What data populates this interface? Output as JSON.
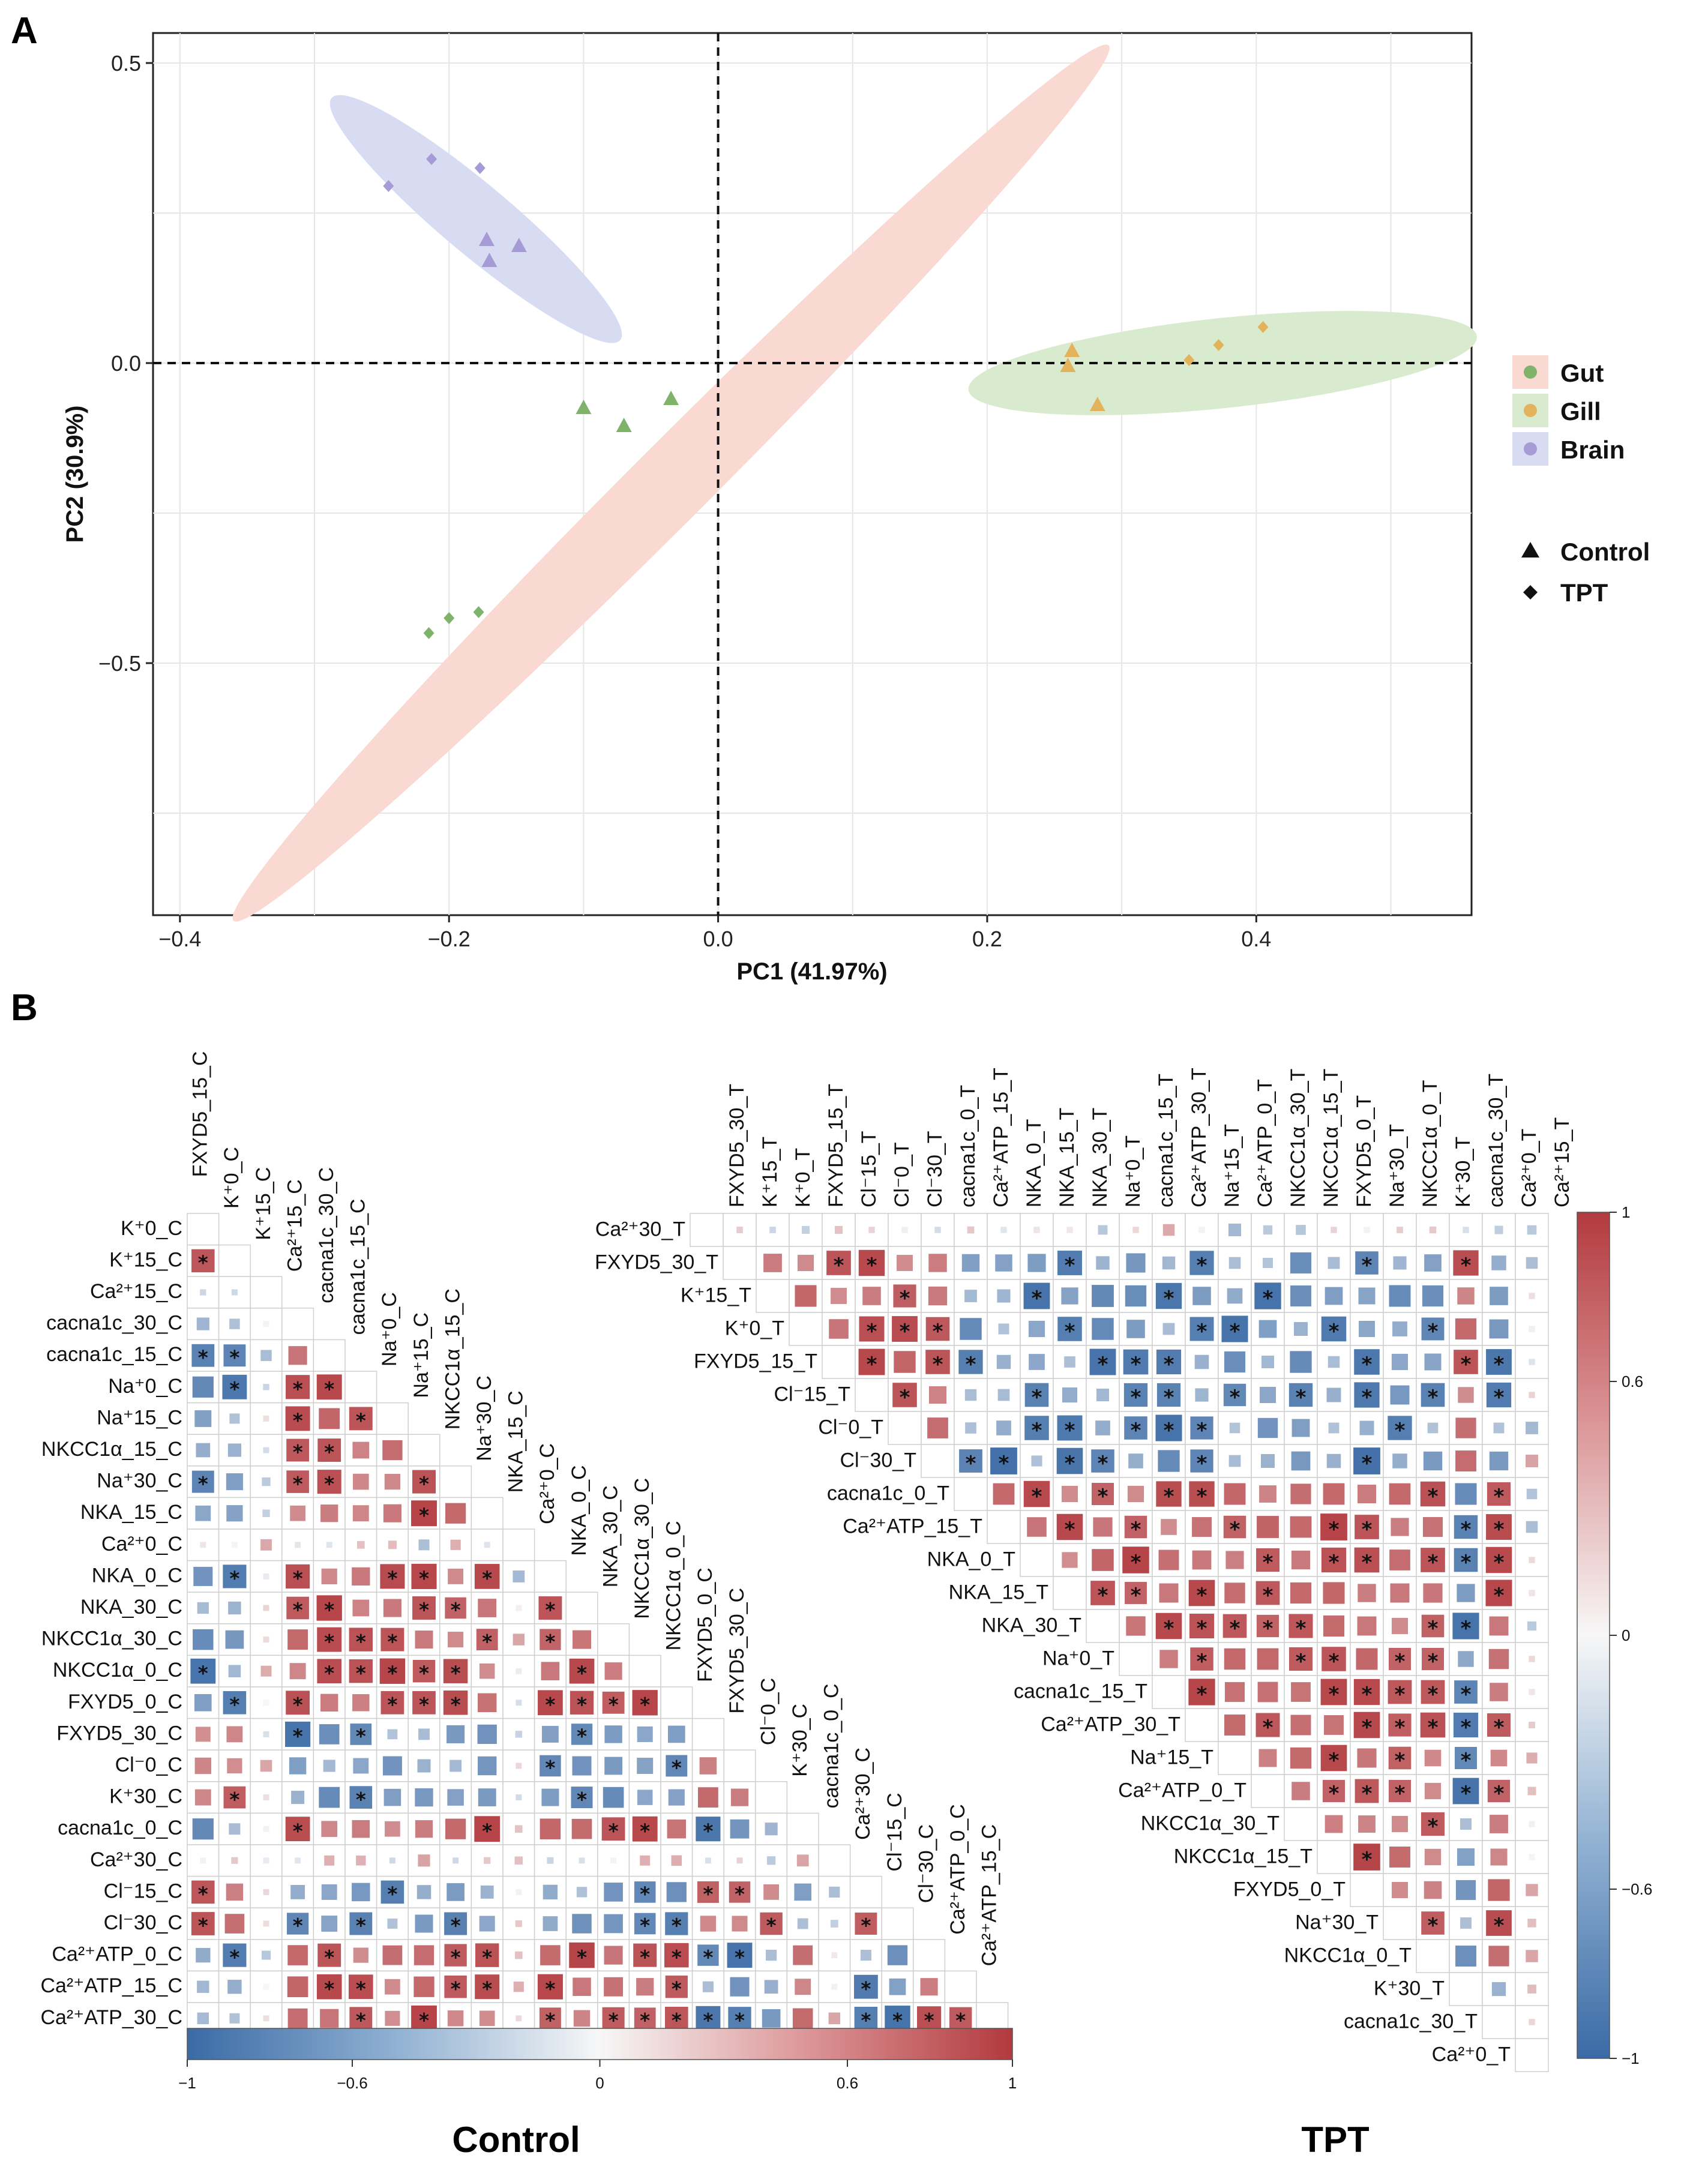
{
  "chart_data": [
    {
      "panel": "A",
      "type": "scatter",
      "xlabel": "PC1 (41.97%)",
      "ylabel": "PC2 (30.9%)",
      "xlim": [
        -0.42,
        0.56
      ],
      "ylim": [
        -0.92,
        0.55
      ],
      "xticks": [
        -0.4,
        -0.2,
        0.0,
        0.2,
        0.4
      ],
      "yticks": [
        -0.5,
        0.0,
        0.5
      ],
      "xtick_labels": [
        "−0.4",
        "−0.2",
        "0.0",
        "0.2",
        "0.4"
      ],
      "ytick_labels": [
        "−0.5",
        "0.0",
        "0.5"
      ],
      "tissues": [
        {
          "name": "Gut",
          "color": "#7fb26a",
          "fill": "#f9d9d2"
        },
        {
          "name": "Gill",
          "color": "#e3b25c",
          "fill": "#d9ebcf"
        },
        {
          "name": "Brain",
          "color": "#a69bd6",
          "fill": "#d7dcf3"
        }
      ],
      "treatments": [
        {
          "name": "Control",
          "shape": "triangle"
        },
        {
          "name": "TPT",
          "shape": "diamond"
        }
      ],
      "ellipses": [
        {
          "tissue": "Gut",
          "cx": -0.035,
          "cy": -0.2,
          "rx": 0.46,
          "ry": 0.065,
          "angle_deg": 45
        },
        {
          "tissue": "Gill",
          "cx": 0.375,
          "cy": 0.0,
          "rx": 0.19,
          "ry": 0.075,
          "angle_deg": 6
        },
        {
          "tissue": "Brain",
          "cx": -0.18,
          "cy": 0.24,
          "rx": 0.14,
          "ry": 0.058,
          "angle_deg": -40
        }
      ],
      "points": [
        {
          "tissue": "Gut",
          "treatment": "Control",
          "x": -0.1,
          "y": -0.075
        },
        {
          "tissue": "Gut",
          "treatment": "Control",
          "x": -0.07,
          "y": -0.105
        },
        {
          "tissue": "Gut",
          "treatment": "Control",
          "x": -0.035,
          "y": -0.06
        },
        {
          "tissue": "Gut",
          "treatment": "TPT",
          "x": -0.215,
          "y": -0.45
        },
        {
          "tissue": "Gut",
          "treatment": "TPT",
          "x": -0.2,
          "y": -0.425
        },
        {
          "tissue": "Gut",
          "treatment": "TPT",
          "x": -0.178,
          "y": -0.415
        },
        {
          "tissue": "Gill",
          "treatment": "Control",
          "x": 0.263,
          "y": 0.02
        },
        {
          "tissue": "Gill",
          "treatment": "Control",
          "x": 0.26,
          "y": -0.005
        },
        {
          "tissue": "Gill",
          "treatment": "Control",
          "x": 0.282,
          "y": -0.07
        },
        {
          "tissue": "Gill",
          "treatment": "TPT",
          "x": 0.35,
          "y": 0.005
        },
        {
          "tissue": "Gill",
          "treatment": "TPT",
          "x": 0.372,
          "y": 0.03
        },
        {
          "tissue": "Gill",
          "treatment": "TPT",
          "x": 0.405,
          "y": 0.06
        },
        {
          "tissue": "Brain",
          "treatment": "Control",
          "x": -0.172,
          "y": 0.205
        },
        {
          "tissue": "Brain",
          "treatment": "Control",
          "x": -0.17,
          "y": 0.17
        },
        {
          "tissue": "Brain",
          "treatment": "Control",
          "x": -0.148,
          "y": 0.195
        },
        {
          "tissue": "Brain",
          "treatment": "TPT",
          "x": -0.245,
          "y": 0.295
        },
        {
          "tissue": "Brain",
          "treatment": "TPT",
          "x": -0.213,
          "y": 0.34
        },
        {
          "tissue": "Brain",
          "treatment": "TPT",
          "x": -0.177,
          "y": 0.325
        }
      ]
    },
    {
      "panel": "B",
      "type": "heatmap",
      "title": "Control",
      "variables": [
        "K⁺0_C",
        "K⁺15_C",
        "Ca²⁺15_C",
        "cacna1c_30_C",
        "cacna1c_15_C",
        "Na⁺0_C",
        "Na⁺15_C",
        "NKCC1α_15_C",
        "Na⁺30_C",
        "NKA_15_C",
        "Ca²⁺0_C",
        "NKA_0_C",
        "NKA_30_C",
        "NKCC1α_30_C",
        "NKCC1α_0_C",
        "FXYD5_0_C",
        "FXYD5_30_C",
        "Cl⁻0_C",
        "K⁺30_C",
        "cacna1c_0_C",
        "Ca²⁺30_C",
        "Cl⁻15_C",
        "Cl⁻30_C",
        "Ca²⁺ATP_0_C",
        "Ca²⁺ATP_15_C",
        "Ca²⁺ATP_30_C"
      ],
      "diag_labels": [
        "FXYD5_15_C",
        "K⁺0_C",
        "K⁺15_C",
        "Ca²⁺15_C",
        "cacna1c_30_C",
        "cacna1c_15_C",
        "Na⁺0_C",
        "Na⁺15_C",
        "NKCC1α_15_C",
        "Na⁺30_C",
        "NKA_15_C",
        "Ca²⁺0_C",
        "NKA_0_C",
        "NKA_30_C",
        "NKCC1α_30_C",
        "NKCC1α_0_C",
        "FXYD5_0_C",
        "FXYD5_30_C",
        "Cl⁻0_C",
        "K⁺30_C",
        "cacna1c_0_C",
        "Ca²⁺30_C",
        "Cl⁻15_C",
        "Cl⁻30_C",
        "Ca²⁺ATP_0_C",
        "Ca²⁺ATP_15_C"
      ],
      "colorbar": {
        "range": [
          -1,
          1
        ],
        "ticks": [
          -1,
          -0.6,
          0,
          0.6,
          1
        ],
        "tick_labels": [
          "−1",
          "−0.6",
          "0",
          "0.6",
          "1"
        ]
      },
      "significance_marker": "*"
    },
    {
      "panel": "B",
      "type": "heatmap",
      "title": "TPT",
      "variables": [
        "Ca²⁺30_T",
        "FXYD5_30_T",
        "K⁺15_T",
        "K⁺0_T",
        "FXYD5_15_T",
        "Cl⁻15_T",
        "Cl⁻0_T",
        "Cl⁻30_T",
        "cacna1c_0_T",
        "Ca²⁺ATP_15_T",
        "NKA_0_T",
        "NKA_15_T",
        "NKA_30_T",
        "Na⁺0_T",
        "cacna1c_15_T",
        "Ca²⁺ATP_30_T",
        "Na⁺15_T",
        "Ca²⁺ATP_0_T",
        "NKCC1α_30_T",
        "NKCC1α_15_T",
        "FXYD5_0_T",
        "Na⁺30_T",
        "NKCC1α_0_T",
        "K⁺30_T",
        "cacna1c_30_T",
        "Ca²⁺0_T"
      ],
      "top_labels": [
        "FXYD5_30_T",
        "K⁺15_T",
        "K⁺0_T",
        "FXYD5_15_T",
        "Cl⁻15_T",
        "Cl⁻0_T",
        "Cl⁻30_T",
        "cacna1c_0_T",
        "Ca²⁺ATP_15_T",
        "NKA_0_T",
        "NKA_15_T",
        "NKA_30_T",
        "Na⁺0_T",
        "cacna1c_15_T",
        "Ca²⁺ATP_30_T",
        "Na⁺15_T",
        "Ca²⁺ATP_0_T",
        "NKCC1α_30_T",
        "NKCC1α_15_T",
        "FXYD5_0_T",
        "Na⁺30_T",
        "NKCC1α_0_T",
        "K⁺30_T",
        "cacna1c_30_T",
        "Ca²⁺0_T",
        "Ca²⁺15_T"
      ],
      "colorbar": {
        "range": [
          -1,
          1
        ],
        "ticks": [
          1,
          0.6,
          0,
          -0.6,
          -1
        ],
        "tick_labels": [
          "1",
          "0.6",
          "0",
          "−0.6",
          "−1"
        ]
      },
      "significance_marker": "*"
    }
  ],
  "panel_labels": {
    "a": "A",
    "b": "B"
  },
  "legend": {
    "tissue_items": [
      "Gut",
      "Gill",
      "Brain"
    ],
    "treatment_items": [
      "Control",
      "TPT"
    ]
  },
  "colors": {
    "neg": "#3a6aa5",
    "pos": "#b23a3e",
    "axis": "#222222",
    "grid": "#e6e6e6"
  }
}
